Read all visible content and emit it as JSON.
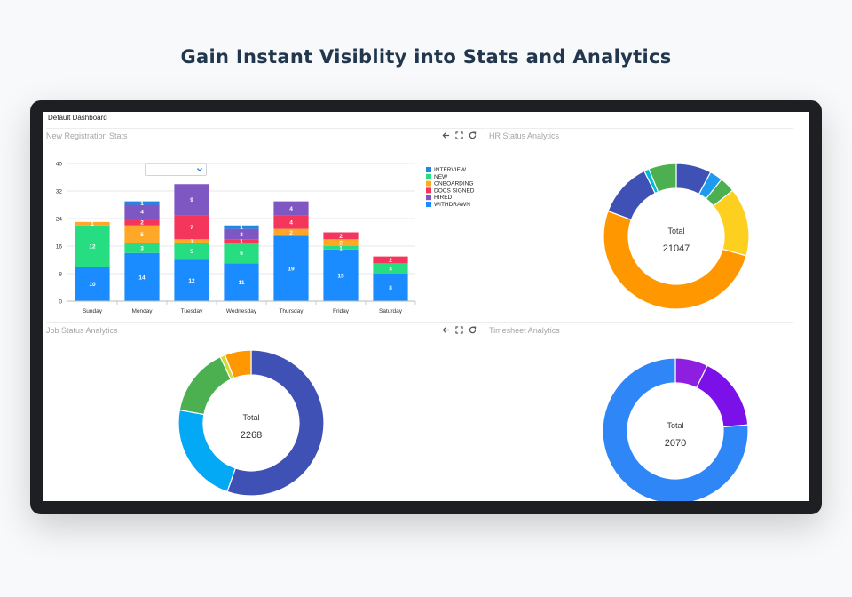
{
  "headline": "Gain Instant Visiblity into Stats and Analytics",
  "dashboard": {
    "title": "Default Dashboard",
    "panels": {
      "registration": {
        "title": "New Registration Stats"
      },
      "hr_status": {
        "title": "HR Status Analytics"
      },
      "job_status": {
        "title": "Job Status Analytics"
      },
      "timesheet": {
        "title": "Timesheet Analytics"
      }
    },
    "tool_icons": [
      "arrow-left-icon",
      "fullscreen-icon",
      "refresh-icon"
    ]
  },
  "colors": {
    "interview": "#1e88e5",
    "new": "#26de81",
    "onboarding": "#ffa726",
    "docs_signed": "#f5365c",
    "hired": "#7e57c2",
    "withdrawn": "#1a8cff"
  },
  "chart_data": [
    {
      "type": "bar",
      "stacked": true,
      "categories": [
        "Sunday",
        "Monday",
        "Tuesday",
        "Wednesday",
        "Thursday",
        "Friday",
        "Saturday"
      ],
      "ylim": [
        0,
        40
      ],
      "yticks": [
        0,
        8,
        16,
        24,
        32,
        40
      ],
      "grid": true,
      "legend_position": "right",
      "series": [
        {
          "name": "WITHDRAWN",
          "color": "#1a8cff",
          "values": [
            10,
            14,
            12,
            11,
            19,
            15,
            8
          ]
        },
        {
          "name": "NEW",
          "color": "#26de81",
          "values": [
            12,
            3,
            5,
            6,
            0,
            1,
            3
          ]
        },
        {
          "name": "ONBOARDING",
          "color": "#ffa726",
          "values": [
            1,
            5,
            1,
            0,
            2,
            2,
            0
          ]
        },
        {
          "name": "DOCS SIGNED",
          "color": "#f5365c",
          "values": [
            0,
            2,
            7,
            1,
            4,
            2,
            2
          ]
        },
        {
          "name": "HIRED",
          "color": "#7e57c2",
          "values": [
            0,
            4,
            9,
            3,
            4,
            0,
            0
          ]
        },
        {
          "name": "INTERVIEW",
          "color": "#1e88e5",
          "values": [
            0,
            1,
            0,
            1,
            0,
            0,
            0
          ]
        }
      ],
      "legend": [
        "INTERVIEW",
        "NEW",
        "ONBOARDING",
        "DOCS SIGNED",
        "HIRED",
        "WITHDRAWN"
      ]
    },
    {
      "type": "pie",
      "donut": true,
      "center_label": "Total",
      "center_value": "21047",
      "slices": [
        {
          "value": 1650,
          "color": "#3f51b5"
        },
        {
          "value": 600,
          "color": "#1e9bf0"
        },
        {
          "value": 720,
          "color": "#4caf50"
        },
        {
          "value": 3200,
          "color": "#fdd020"
        },
        {
          "value": 10800,
          "color": "#ff9800"
        },
        {
          "value": 2550,
          "color": "#3f51b5"
        },
        {
          "value": 230,
          "color": "#00bcd4"
        },
        {
          "value": 1297,
          "color": "#4caf50"
        }
      ]
    },
    {
      "type": "pie",
      "donut": true,
      "center_label": "Total",
      "center_value": "2268",
      "slices": [
        {
          "value": 1255,
          "color": "#3f51b5"
        },
        {
          "value": 510,
          "color": "#03a9f4"
        },
        {
          "value": 345,
          "color": "#4caf50"
        },
        {
          "value": 25,
          "color": "#cddc39"
        },
        {
          "value": 133,
          "color": "#ff9800"
        }
      ]
    },
    {
      "type": "pie",
      "donut": true,
      "center_label": "Total",
      "center_value": "2070",
      "slices": [
        {
          "value": 150,
          "color": "#8e1ee0"
        },
        {
          "value": 340,
          "color": "#7b10e8"
        },
        {
          "value": 1580,
          "color": "#2f86f6"
        }
      ]
    }
  ]
}
